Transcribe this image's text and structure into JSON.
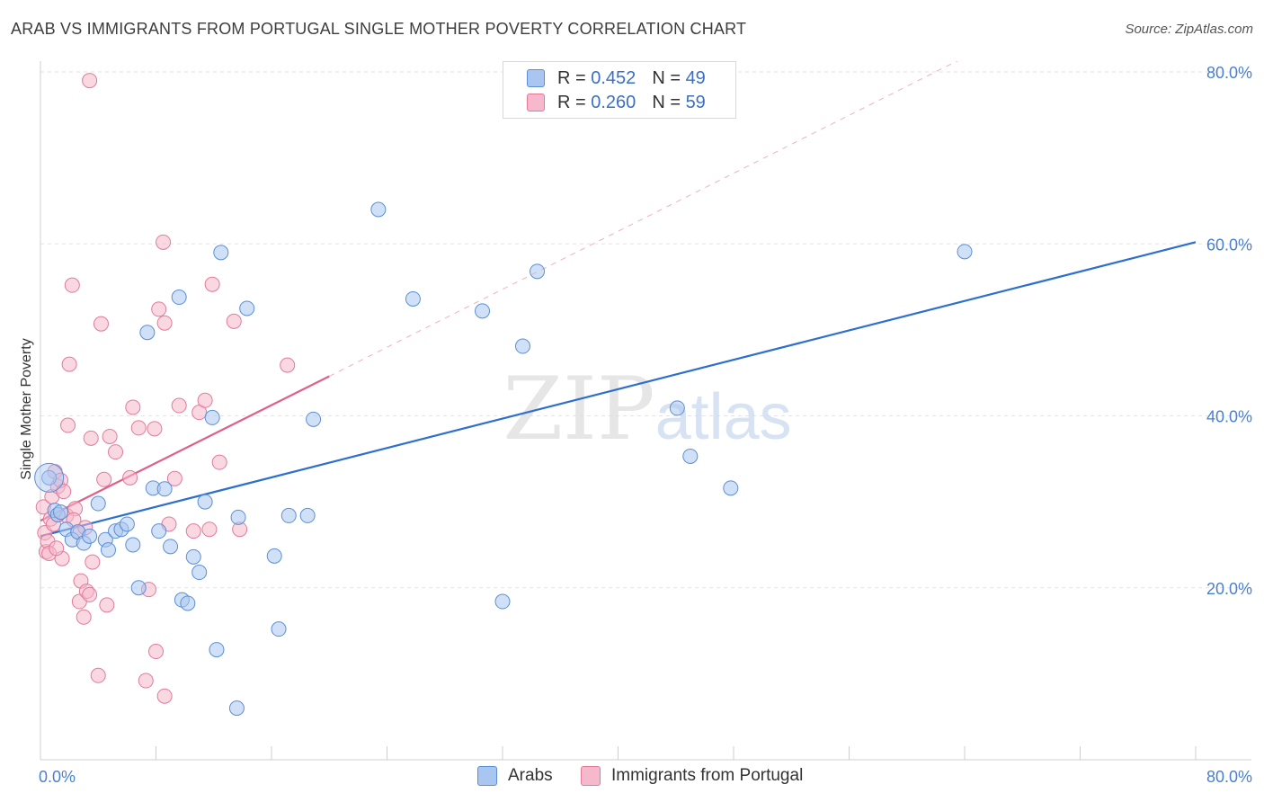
{
  "title": "ARAB VS IMMIGRANTS FROM PORTUGAL SINGLE MOTHER POVERTY CORRELATION CHART",
  "source": "Source: ZipAtlas.com",
  "watermark": "ZIPatlas",
  "legend": {
    "series1": {
      "r_label": "R =",
      "r_value": "0.452",
      "n_label": "N =",
      "n_value": "49"
    },
    "series2": {
      "r_label": "R =",
      "r_value": "0.260",
      "n_label": "N =",
      "n_value": "59"
    }
  },
  "bottom_legend": {
    "arabs": "Arabs",
    "portugal": "Immigrants from Portugal"
  },
  "colors": {
    "arabs_fill": "#a9c6f0",
    "arabs_stroke": "#5b8fd6",
    "arabs_line": "#2d6fcf",
    "portugal_fill": "#f6b8cb",
    "portugal_stroke": "#e27a9c",
    "portugal_line": "#e0608c",
    "tick_text": "#4a7fd1",
    "grid": "#e3e3e3"
  },
  "chart_data": {
    "type": "scatter",
    "title": "ARAB VS IMMIGRANTS FROM PORTUGAL SINGLE MOTHER POVERTY CORRELATION CHART",
    "xlabel": "",
    "ylabel": "Single Mother Poverty",
    "xlim": [
      0,
      80
    ],
    "ylim": [
      0,
      80
    ],
    "x_tick_labels": [
      "0.0%",
      "80.0%"
    ],
    "y_tick_labels": [
      "20.0%",
      "40.0%",
      "60.0%",
      "80.0%"
    ],
    "y_ticks": [
      20,
      40,
      60,
      80
    ],
    "grid": true,
    "series": [
      {
        "name": "Arabs",
        "r": 0.452,
        "n": 49,
        "trend": {
          "x": [
            0,
            80
          ],
          "y": [
            26.0,
            60.2
          ],
          "style": "solid"
        },
        "points": [
          [
            0.6,
            32.8
          ],
          [
            1.0,
            29.0
          ],
          [
            1.2,
            28.5
          ],
          [
            1.4,
            28.8
          ],
          [
            1.8,
            26.8
          ],
          [
            2.2,
            25.6
          ],
          [
            2.6,
            26.5
          ],
          [
            3.0,
            25.2
          ],
          [
            3.4,
            26.0
          ],
          [
            4.0,
            29.8
          ],
          [
            4.5,
            25.6
          ],
          [
            4.7,
            24.4
          ],
          [
            5.2,
            26.6
          ],
          [
            5.6,
            26.8
          ],
          [
            6.0,
            27.4
          ],
          [
            6.4,
            25.0
          ],
          [
            6.8,
            20.0
          ],
          [
            7.4,
            49.7
          ],
          [
            7.8,
            31.6
          ],
          [
            8.2,
            26.6
          ],
          [
            8.6,
            31.5
          ],
          [
            9.0,
            24.8
          ],
          [
            9.6,
            53.8
          ],
          [
            9.8,
            18.6
          ],
          [
            10.2,
            18.2
          ],
          [
            10.6,
            23.6
          ],
          [
            11.0,
            21.8
          ],
          [
            11.4,
            30.0
          ],
          [
            11.9,
            39.8
          ],
          [
            12.2,
            12.8
          ],
          [
            12.5,
            59.0
          ],
          [
            13.6,
            6.0
          ],
          [
            13.7,
            28.2
          ],
          [
            14.3,
            52.5
          ],
          [
            16.2,
            23.7
          ],
          [
            16.5,
            15.2
          ],
          [
            17.2,
            28.4
          ],
          [
            18.5,
            28.4
          ],
          [
            18.9,
            39.6
          ],
          [
            23.4,
            64.0
          ],
          [
            25.8,
            53.6
          ],
          [
            30.6,
            52.2
          ],
          [
            32.0,
            18.4
          ],
          [
            33.4,
            48.1
          ],
          [
            34.4,
            56.8
          ],
          [
            44.1,
            40.9
          ],
          [
            45.0,
            35.3
          ],
          [
            47.8,
            31.6
          ],
          [
            64.0,
            59.1
          ]
        ]
      },
      {
        "name": "Immigrants from Portugal",
        "r": 0.26,
        "n": 59,
        "trend": {
          "x": [
            0,
            20
          ],
          "y": [
            27.8,
            44.6
          ],
          "style": "solid",
          "extended_to": [
            80,
            95.2
          ],
          "extended_style": "dashed"
        },
        "points": [
          [
            0.2,
            29.4
          ],
          [
            0.3,
            26.4
          ],
          [
            0.4,
            24.2
          ],
          [
            0.5,
            25.4
          ],
          [
            0.6,
            24.0
          ],
          [
            0.7,
            28.0
          ],
          [
            0.8,
            30.6
          ],
          [
            1.0,
            33.5
          ],
          [
            1.2,
            31.8
          ],
          [
            1.4,
            32.5
          ],
          [
            1.5,
            23.4
          ],
          [
            1.6,
            31.2
          ],
          [
            1.8,
            28.4
          ],
          [
            1.9,
            38.9
          ],
          [
            2.0,
            46.0
          ],
          [
            2.2,
            55.2
          ],
          [
            2.4,
            29.2
          ],
          [
            2.6,
            26.5
          ],
          [
            2.7,
            18.4
          ],
          [
            2.8,
            20.8
          ],
          [
            3.0,
            16.6
          ],
          [
            3.1,
            27.0
          ],
          [
            3.2,
            19.6
          ],
          [
            3.4,
            19.2
          ],
          [
            3.4,
            79.0
          ],
          [
            3.5,
            37.4
          ],
          [
            3.6,
            23.0
          ],
          [
            4.0,
            9.8
          ],
          [
            4.2,
            50.7
          ],
          [
            4.4,
            32.6
          ],
          [
            4.6,
            18.0
          ],
          [
            4.8,
            37.6
          ],
          [
            5.2,
            35.8
          ],
          [
            6.2,
            32.8
          ],
          [
            6.4,
            41.0
          ],
          [
            6.8,
            38.6
          ],
          [
            7.3,
            9.2
          ],
          [
            7.5,
            19.8
          ],
          [
            7.9,
            38.5
          ],
          [
            8.0,
            12.6
          ],
          [
            8.2,
            52.4
          ],
          [
            8.5,
            60.2
          ],
          [
            8.6,
            7.4
          ],
          [
            8.6,
            50.8
          ],
          [
            8.9,
            27.4
          ],
          [
            9.3,
            32.7
          ],
          [
            9.6,
            41.2
          ],
          [
            10.6,
            26.6
          ],
          [
            11.0,
            40.4
          ],
          [
            11.4,
            41.8
          ],
          [
            11.7,
            26.8
          ],
          [
            11.9,
            55.3
          ],
          [
            12.4,
            34.6
          ],
          [
            13.4,
            51.0
          ],
          [
            13.8,
            26.8
          ],
          [
            17.1,
            45.9
          ],
          [
            0.9,
            27.4
          ],
          [
            1.1,
            24.6
          ],
          [
            2.3,
            27.9
          ]
        ]
      }
    ]
  }
}
